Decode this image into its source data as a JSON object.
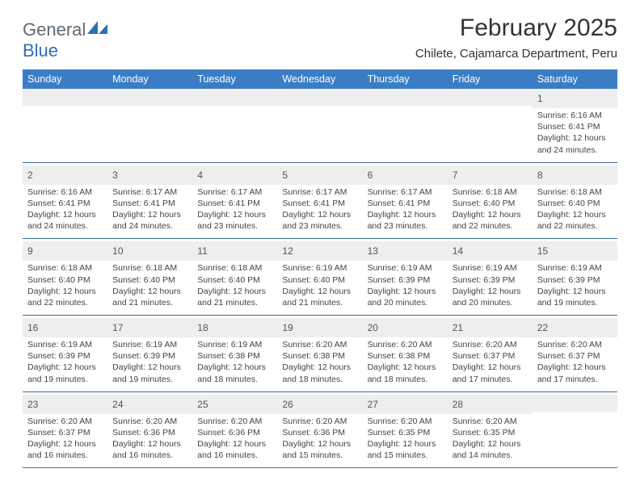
{
  "logo": {
    "word1": "General",
    "word2": "Blue"
  },
  "header": {
    "title": "February 2025",
    "location": "Chilete, Cajamarca Department, Peru"
  },
  "colors": {
    "header_bar": "#3b7dc4",
    "daynum_bg": "#eeeeee",
    "week_border": "#3b6d9c",
    "logo_gray": "#5f6a72",
    "logo_blue": "#2f6fb0"
  },
  "weekdays": [
    "Sunday",
    "Monday",
    "Tuesday",
    "Wednesday",
    "Thursday",
    "Friday",
    "Saturday"
  ],
  "weeks": [
    [
      {
        "day": "",
        "lines": []
      },
      {
        "day": "",
        "lines": []
      },
      {
        "day": "",
        "lines": []
      },
      {
        "day": "",
        "lines": []
      },
      {
        "day": "",
        "lines": []
      },
      {
        "day": "",
        "lines": []
      },
      {
        "day": "1",
        "lines": [
          "Sunrise: 6:16 AM",
          "Sunset: 6:41 PM",
          "Daylight: 12 hours and 24 minutes."
        ]
      }
    ],
    [
      {
        "day": "2",
        "lines": [
          "Sunrise: 6:16 AM",
          "Sunset: 6:41 PM",
          "Daylight: 12 hours and 24 minutes."
        ]
      },
      {
        "day": "3",
        "lines": [
          "Sunrise: 6:17 AM",
          "Sunset: 6:41 PM",
          "Daylight: 12 hours and 24 minutes."
        ]
      },
      {
        "day": "4",
        "lines": [
          "Sunrise: 6:17 AM",
          "Sunset: 6:41 PM",
          "Daylight: 12 hours and 23 minutes."
        ]
      },
      {
        "day": "5",
        "lines": [
          "Sunrise: 6:17 AM",
          "Sunset: 6:41 PM",
          "Daylight: 12 hours and 23 minutes."
        ]
      },
      {
        "day": "6",
        "lines": [
          "Sunrise: 6:17 AM",
          "Sunset: 6:41 PM",
          "Daylight: 12 hours and 23 minutes."
        ]
      },
      {
        "day": "7",
        "lines": [
          "Sunrise: 6:18 AM",
          "Sunset: 6:40 PM",
          "Daylight: 12 hours and 22 minutes."
        ]
      },
      {
        "day": "8",
        "lines": [
          "Sunrise: 6:18 AM",
          "Sunset: 6:40 PM",
          "Daylight: 12 hours and 22 minutes."
        ]
      }
    ],
    [
      {
        "day": "9",
        "lines": [
          "Sunrise: 6:18 AM",
          "Sunset: 6:40 PM",
          "Daylight: 12 hours and 22 minutes."
        ]
      },
      {
        "day": "10",
        "lines": [
          "Sunrise: 6:18 AM",
          "Sunset: 6:40 PM",
          "Daylight: 12 hours and 21 minutes."
        ]
      },
      {
        "day": "11",
        "lines": [
          "Sunrise: 6:18 AM",
          "Sunset: 6:40 PM",
          "Daylight: 12 hours and 21 minutes."
        ]
      },
      {
        "day": "12",
        "lines": [
          "Sunrise: 6:19 AM",
          "Sunset: 6:40 PM",
          "Daylight: 12 hours and 21 minutes."
        ]
      },
      {
        "day": "13",
        "lines": [
          "Sunrise: 6:19 AM",
          "Sunset: 6:39 PM",
          "Daylight: 12 hours and 20 minutes."
        ]
      },
      {
        "day": "14",
        "lines": [
          "Sunrise: 6:19 AM",
          "Sunset: 6:39 PM",
          "Daylight: 12 hours and 20 minutes."
        ]
      },
      {
        "day": "15",
        "lines": [
          "Sunrise: 6:19 AM",
          "Sunset: 6:39 PM",
          "Daylight: 12 hours and 19 minutes."
        ]
      }
    ],
    [
      {
        "day": "16",
        "lines": [
          "Sunrise: 6:19 AM",
          "Sunset: 6:39 PM",
          "Daylight: 12 hours and 19 minutes."
        ]
      },
      {
        "day": "17",
        "lines": [
          "Sunrise: 6:19 AM",
          "Sunset: 6:39 PM",
          "Daylight: 12 hours and 19 minutes."
        ]
      },
      {
        "day": "18",
        "lines": [
          "Sunrise: 6:19 AM",
          "Sunset: 6:38 PM",
          "Daylight: 12 hours and 18 minutes."
        ]
      },
      {
        "day": "19",
        "lines": [
          "Sunrise: 6:20 AM",
          "Sunset: 6:38 PM",
          "Daylight: 12 hours and 18 minutes."
        ]
      },
      {
        "day": "20",
        "lines": [
          "Sunrise: 6:20 AM",
          "Sunset: 6:38 PM",
          "Daylight: 12 hours and 18 minutes."
        ]
      },
      {
        "day": "21",
        "lines": [
          "Sunrise: 6:20 AM",
          "Sunset: 6:37 PM",
          "Daylight: 12 hours and 17 minutes."
        ]
      },
      {
        "day": "22",
        "lines": [
          "Sunrise: 6:20 AM",
          "Sunset: 6:37 PM",
          "Daylight: 12 hours and 17 minutes."
        ]
      }
    ],
    [
      {
        "day": "23",
        "lines": [
          "Sunrise: 6:20 AM",
          "Sunset: 6:37 PM",
          "Daylight: 12 hours and 16 minutes."
        ]
      },
      {
        "day": "24",
        "lines": [
          "Sunrise: 6:20 AM",
          "Sunset: 6:36 PM",
          "Daylight: 12 hours and 16 minutes."
        ]
      },
      {
        "day": "25",
        "lines": [
          "Sunrise: 6:20 AM",
          "Sunset: 6:36 PM",
          "Daylight: 12 hours and 16 minutes."
        ]
      },
      {
        "day": "26",
        "lines": [
          "Sunrise: 6:20 AM",
          "Sunset: 6:36 PM",
          "Daylight: 12 hours and 15 minutes."
        ]
      },
      {
        "day": "27",
        "lines": [
          "Sunrise: 6:20 AM",
          "Sunset: 6:35 PM",
          "Daylight: 12 hours and 15 minutes."
        ]
      },
      {
        "day": "28",
        "lines": [
          "Sunrise: 6:20 AM",
          "Sunset: 6:35 PM",
          "Daylight: 12 hours and 14 minutes."
        ]
      },
      {
        "day": "",
        "lines": []
      }
    ]
  ]
}
